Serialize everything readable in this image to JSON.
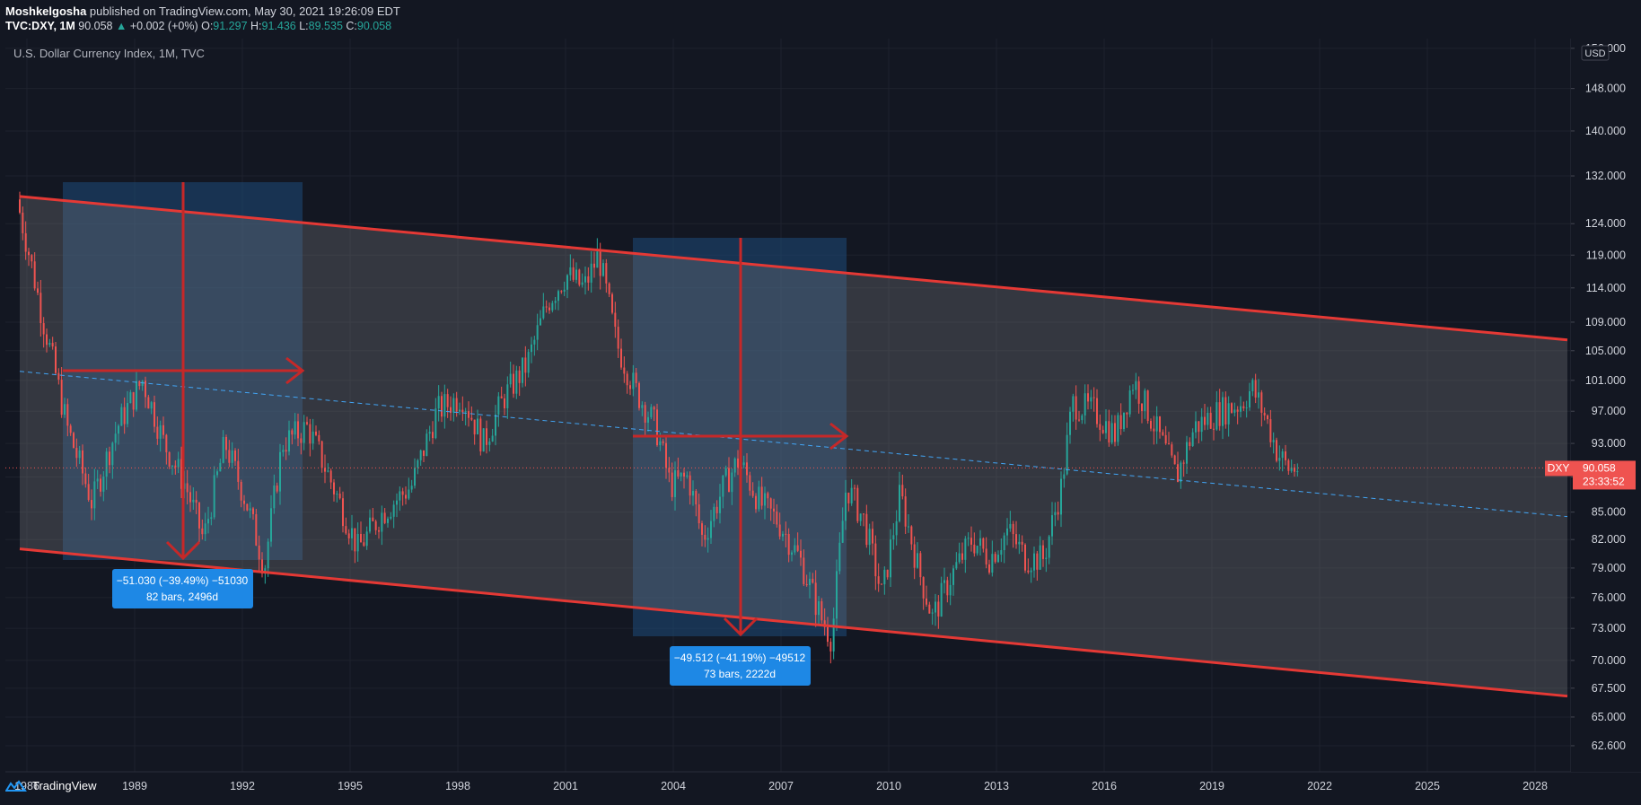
{
  "header": {
    "author": "Moshkelgosha",
    "published": "published on TradingView.com, May 30, 2021 19:26:09 EDT",
    "symbol": "TVC:DXY, 1M",
    "last": "90.058",
    "change": "+0.002 (+0%)",
    "open_label": "O:",
    "open": "91.297",
    "high_label": "H:",
    "high": "91.436",
    "low_label": "L:",
    "low": "89.535",
    "close_label": "C:",
    "close": "90.058"
  },
  "legend_title": "U.S. Dollar Currency Index, 1M, TVC",
  "currency_badge": "USD",
  "price_label": {
    "symbol": "DXY",
    "price": "90.058",
    "countdown": "23:33:52"
  },
  "measures": [
    {
      "line1": "−51.030 (−39.49%) −51030",
      "line2": "82 bars, 2496d"
    },
    {
      "line1": "−49.512 (−41.19%) −49512",
      "line2": "73 bars, 2222d"
    }
  ],
  "footer": {
    "brand": "TradingView"
  },
  "colors": {
    "background": "#131722",
    "up": "#26a69a",
    "down": "#ef5350",
    "channel": "#e53935",
    "measure": "#1e88e5"
  },
  "chart_data": {
    "type": "candlestick",
    "title": "U.S. Dollar Currency Index, 1M, TVC",
    "x_ticks": [
      "1986",
      "1989",
      "1992",
      "1995",
      "1998",
      "2001",
      "2004",
      "2007",
      "2010",
      "2013",
      "2016",
      "2019",
      "2022",
      "2025",
      "2028"
    ],
    "y_ticks": [
      "62.600",
      "65.000",
      "67.500",
      "70.000",
      "73.000",
      "76.000",
      "79.000",
      "82.000",
      "85.000",
      "89.000",
      "93.000",
      "97.000",
      "101.000",
      "105.000",
      "109.000",
      "114.000",
      "119.000",
      "124.000",
      "132.000",
      "140.000",
      "148.000",
      "156.000"
    ],
    "y_scale": "log",
    "ylim": [
      60.5,
      158
    ],
    "xlim": [
      1985.4,
      2029.0
    ],
    "series": [
      {
        "name": "DXY",
        "points": [
          [
            1985.8,
            128
          ],
          [
            1986.5,
            110
          ],
          [
            1987.2,
            95
          ],
          [
            1987.9,
            86
          ],
          [
            1988.6,
            95
          ],
          [
            1989.3,
            101
          ],
          [
            1989.9,
            93
          ],
          [
            1990.5,
            88
          ],
          [
            1991.0,
            82
          ],
          [
            1991.6,
            93
          ],
          [
            1992.2,
            86
          ],
          [
            1992.7,
            79
          ],
          [
            1993.2,
            93
          ],
          [
            1993.9,
            95
          ],
          [
            1994.6,
            88
          ],
          [
            1995.3,
            81
          ],
          [
            1996.0,
            85
          ],
          [
            1996.8,
            88
          ],
          [
            1997.5,
            97
          ],
          [
            1998.2,
            99
          ],
          [
            1998.8,
            93
          ],
          [
            1999.4,
            99
          ],
          [
            2000.0,
            103
          ],
          [
            2000.6,
            112
          ],
          [
            2001.1,
            116
          ],
          [
            2001.6,
            114
          ],
          [
            2002.0,
            119
          ],
          [
            2002.5,
            106
          ],
          [
            2003.0,
            100
          ],
          [
            2003.6,
            95
          ],
          [
            2004.0,
            88
          ],
          [
            2004.5,
            89
          ],
          [
            2004.9,
            82
          ],
          [
            2005.5,
            88
          ],
          [
            2005.9,
            91
          ],
          [
            2006.5,
            86
          ],
          [
            2007.0,
            84
          ],
          [
            2007.6,
            80
          ],
          [
            2008.2,
            74
          ],
          [
            2008.5,
            72
          ],
          [
            2008.9,
            88
          ],
          [
            2009.4,
            84
          ],
          [
            2009.9,
            76
          ],
          [
            2010.4,
            87
          ],
          [
            2010.9,
            79
          ],
          [
            2011.3,
            74
          ],
          [
            2011.8,
            78
          ],
          [
            2012.4,
            82
          ],
          [
            2012.9,
            80
          ],
          [
            2013.4,
            83
          ],
          [
            2013.9,
            80
          ],
          [
            2014.4,
            80
          ],
          [
            2014.9,
            88
          ],
          [
            2015.2,
            98
          ],
          [
            2015.8,
            97
          ],
          [
            2016.4,
            94
          ],
          [
            2016.9,
            101
          ],
          [
            2017.5,
            95
          ],
          [
            2018.1,
            89
          ],
          [
            2018.6,
            95
          ],
          [
            2019.3,
            97
          ],
          [
            2019.9,
            98
          ],
          [
            2020.2,
            100
          ],
          [
            2020.6,
            96
          ],
          [
            2020.9,
            92
          ],
          [
            2021.2,
            90
          ],
          [
            2021.4,
            90.058
          ]
        ]
      }
    ],
    "channel": {
      "upper": [
        [
          1985.8,
          128.5
        ],
        [
          2028.9,
          106.5
        ]
      ],
      "lower": [
        [
          1985.8,
          81.0
        ],
        [
          2028.9,
          66.8
        ]
      ],
      "mid": [
        [
          1985.8,
          102.2
        ],
        [
          2028.9,
          84.5
        ]
      ]
    },
    "last_price": 90.058
  }
}
